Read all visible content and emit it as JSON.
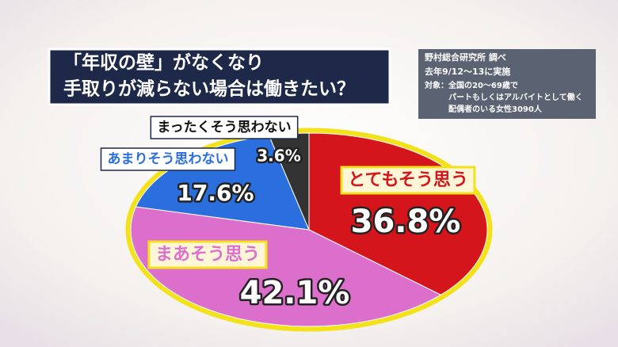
{
  "chart_data": {
    "type": "pie",
    "title": [
      "「年収の壁」がなくなり",
      "手取りが減らない場合は働きたい？"
    ],
    "source": [
      "野村総合研究所 調べ",
      "去年9/12〜13に実施",
      "対象：全国の20〜69歳で",
      "パートもしくはアルバイトとして働く",
      "配偶者のいる女性3090人"
    ],
    "categories": [
      "とてもそう思う",
      "まあそう思う",
      "あまりそう思わない",
      "まったくそう思わない"
    ],
    "values": [
      36.8,
      42.1,
      17.6,
      3.6
    ],
    "value_labels": [
      "36.8%",
      "42.1%",
      "17.6%",
      "3.6%"
    ],
    "colors": [
      "#d4161c",
      "#dd6fcc",
      "#2b6fdf",
      "#333333"
    ]
  }
}
